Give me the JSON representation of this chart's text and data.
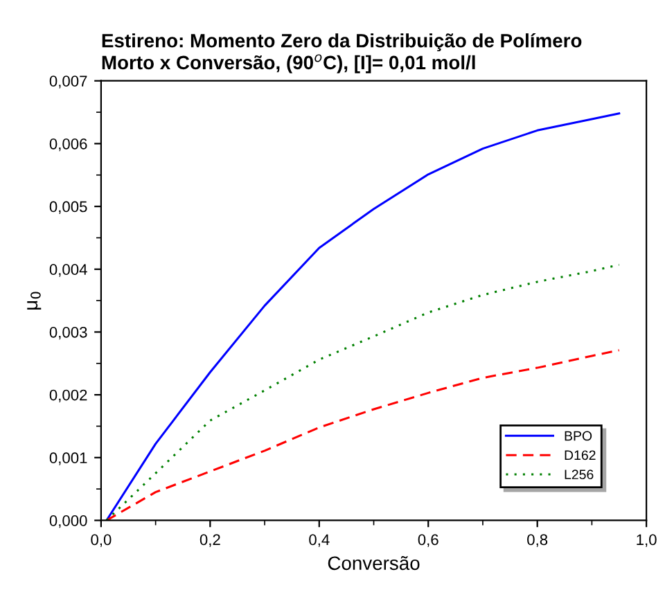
{
  "chart_data": {
    "type": "line",
    "title": "Estireno: Momento Zero da Distribuição de Polímero\nMorto x Conversão, (90$^{o}$C), [I]= 0,01 mol/l",
    "xlabel": "Conversão",
    "ylabel": "μ$_{0}$",
    "x": [
      0.01,
      0.1,
      0.2,
      0.3,
      0.4,
      0.5,
      0.6,
      0.7,
      0.8,
      0.9,
      0.95
    ],
    "series": [
      {
        "name": "BPO",
        "color": "#0000ff",
        "line_style": "solid",
        "values": [
          0,
          0.00122,
          0.00236,
          0.00342,
          0.00434,
          0.00496,
          0.00551,
          0.00592,
          0.00621,
          0.00639,
          0.00648
        ]
      },
      {
        "name": "D162",
        "color": "#ff0000",
        "line_style": "dashed",
        "values": [
          0,
          0.00045,
          0.00078,
          0.00111,
          0.00148,
          0.00177,
          0.00203,
          0.00227,
          0.00243,
          0.00262,
          0.00271
        ]
      },
      {
        "name": "L256",
        "color": "#008000",
        "line_style": "dotted",
        "values": [
          0,
          0.00075,
          0.00159,
          0.00207,
          0.00256,
          0.00293,
          0.00331,
          0.00359,
          0.0038,
          0.00397,
          0.00407
        ]
      }
    ],
    "xlim": [
      0,
      1
    ],
    "ylim": [
      0,
      0.007
    ],
    "xticks": [
      {
        "value": 0,
        "label": "0,0"
      },
      {
        "value": 0.2,
        "label": "0,2"
      },
      {
        "value": 0.4,
        "label": "0,4"
      },
      {
        "value": 0.6,
        "label": "0,6"
      },
      {
        "value": 0.8,
        "label": "0,8"
      },
      {
        "value": 1,
        "label": "1,0"
      }
    ],
    "yticks": [
      {
        "value": 0,
        "label": "0,000"
      },
      {
        "value": 0.001,
        "label": "0,001"
      },
      {
        "value": 0.002,
        "label": "0,002"
      },
      {
        "value": 0.003,
        "label": "0,003"
      },
      {
        "value": 0.004,
        "label": "0,004"
      },
      {
        "value": 0.005,
        "label": "0,005"
      },
      {
        "value": 0.006,
        "label": "0,006"
      },
      {
        "value": 0.007,
        "label": "0,007"
      }
    ],
    "grid": false,
    "legend": "lower right",
    "marker": "none"
  }
}
